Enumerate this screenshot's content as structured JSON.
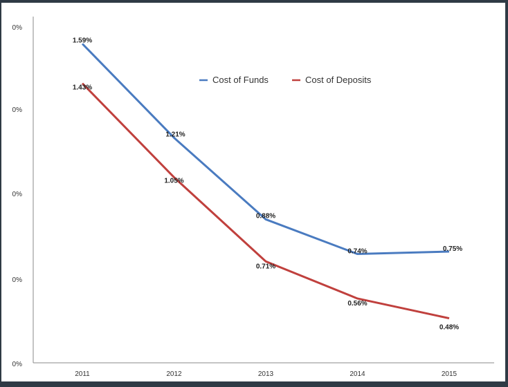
{
  "chart_data": {
    "type": "line",
    "categories": [
      "2011",
      "2012",
      "2013",
      "2014",
      "2015"
    ],
    "series": [
      {
        "name": "Cost of Funds",
        "color": "#4a7bc0",
        "values": [
          1.59,
          1.21,
          0.88,
          0.74,
          0.75
        ],
        "labels": [
          "1.59%",
          "1.21%",
          "0.88%",
          "0.74%",
          "0.75%"
        ]
      },
      {
        "name": "Cost of Deposits",
        "color": "#c0403d",
        "values": [
          1.43,
          1.05,
          0.71,
          0.56,
          0.48
        ],
        "labels": [
          "1.43%",
          "1.05%",
          "0.71%",
          "0.56%",
          "0.48%"
        ]
      }
    ],
    "y_tick_labels": [
      "0%",
      "0%",
      "0%",
      "0%",
      "0%"
    ],
    "ylim": [
      0.3,
      1.7
    ],
    "legend": "inside-top-center",
    "grid": false
  }
}
